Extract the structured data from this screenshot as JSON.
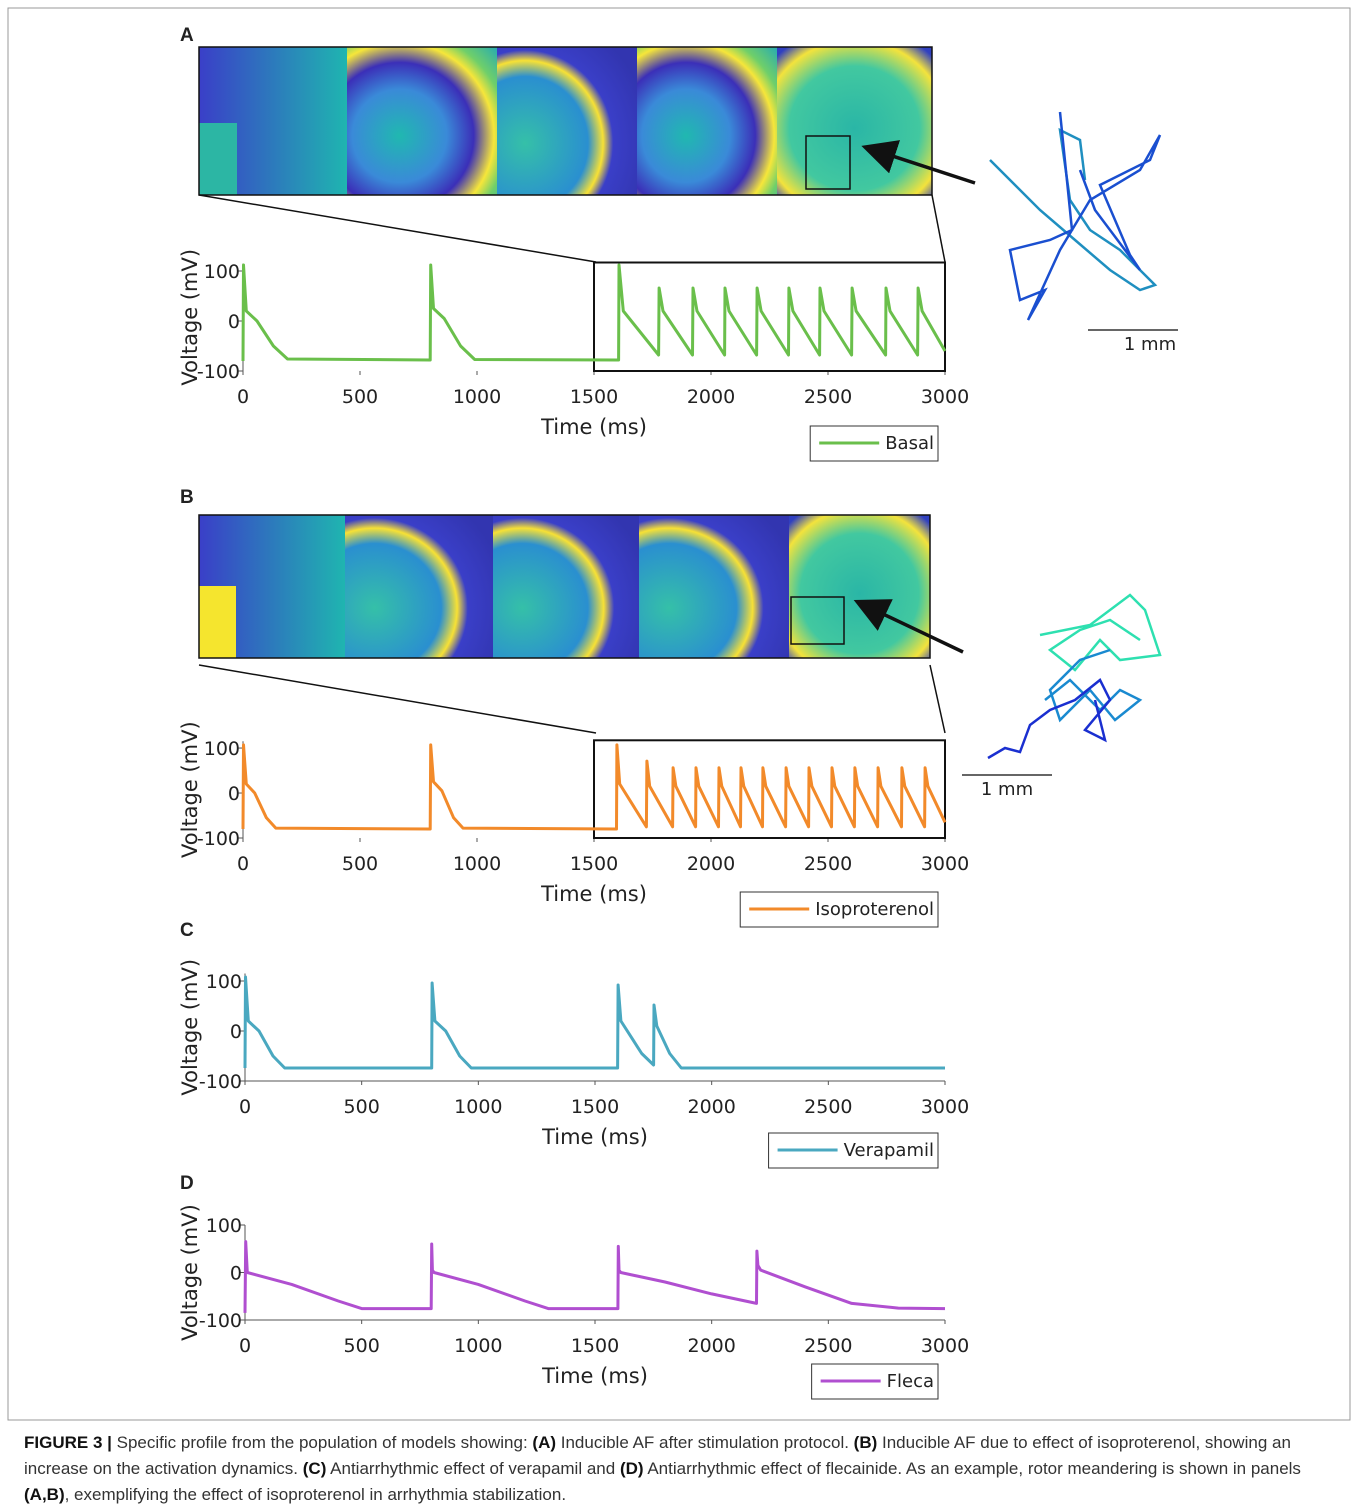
{
  "panel_labels": [
    "A",
    "B",
    "C",
    "D"
  ],
  "scale_bars": [
    "1 mm",
    "1 mm"
  ],
  "caption": [
    {
      "text": "FIGURE 3 |",
      "bold": true
    },
    {
      "text": " Specific profile from the population of models showing: ",
      "bold": false
    },
    {
      "text": "(A)",
      "bold": true
    },
    {
      "text": " Inducible AF after stimulation protocol. ",
      "bold": false
    },
    {
      "text": "(B)",
      "bold": true
    },
    {
      "text": " Inducible AF due to effect of isoproterenol, showing an increase on the activation dynamics. ",
      "bold": false
    },
    {
      "text": "(C)",
      "bold": true
    },
    {
      "text": " Antiarrhythmic effect of verapamil and ",
      "bold": false
    },
    {
      "text": "(D)",
      "bold": true
    },
    {
      "text": " Antiarrhythmic effect of flecainide. As an example, rotor meandering is shown in panels ",
      "bold": false
    },
    {
      "text": "(A,B)",
      "bold": true
    },
    {
      "text": ", exemplifying the effect of isoproterenol in arrhythmia stabilization.",
      "bold": false
    }
  ],
  "chart_data": [
    {
      "type": "line",
      "xlabel": "Time (ms)",
      "ylabel": "Voltage (mV)",
      "xlim": [
        0,
        3000
      ],
      "ylim": [
        -100,
        115
      ],
      "xticks": [
        0,
        500,
        1000,
        1500,
        2000,
        2500,
        3000
      ],
      "yticks": [
        -100,
        0,
        100
      ],
      "highlight": [
        1500,
        3000
      ],
      "x": [
        0,
        2,
        14,
        60,
        130,
        190,
        800,
        802,
        814,
        860,
        930,
        990,
        1605,
        1607,
        1625,
        1776,
        1778,
        1795,
        1921,
        1923,
        1940,
        2058,
        2060,
        2077,
        2195,
        2197,
        2214,
        2331,
        2333,
        2350,
        2464,
        2466,
        2483,
        2601,
        2603,
        2620,
        2746,
        2748,
        2765,
        2883,
        2885,
        2902,
        3000
      ],
      "series": [
        {
          "name": "Basal",
          "color": "#6abf4b",
          "values": [
            -80,
            112,
            20,
            0,
            -50,
            -76,
            -78,
            112,
            25,
            5,
            -50,
            -77,
            -78,
            112,
            20,
            -68,
            66,
            20,
            -68,
            66,
            20,
            -68,
            66,
            20,
            -68,
            66,
            20,
            -68,
            66,
            20,
            -68,
            66,
            20,
            -68,
            66,
            20,
            -68,
            66,
            20,
            -68,
            66,
            20,
            -60
          ]
        }
      ]
    },
    {
      "type": "line",
      "xlabel": "Time (ms)",
      "ylabel": "Voltage (mV)",
      "xlim": [
        0,
        3000
      ],
      "ylim": [
        -100,
        115
      ],
      "xticks": [
        0,
        500,
        1000,
        1500,
        2000,
        2500,
        3000
      ],
      "yticks": [
        -100,
        0,
        100
      ],
      "highlight": [
        1500,
        3000
      ],
      "x": [
        0,
        2,
        14,
        50,
        100,
        140,
        800,
        802,
        814,
        850,
        900,
        940,
        1596,
        1598,
        1610,
        1724,
        1726,
        1738,
        1836,
        1838,
        1850,
        1934,
        1936,
        1948,
        2032,
        2034,
        2046,
        2126,
        2128,
        2140,
        2220,
        2222,
        2234,
        2319,
        2321,
        2333,
        2417,
        2419,
        2431,
        2515,
        2517,
        2529,
        2613,
        2615,
        2627,
        2712,
        2714,
        2726,
        2814,
        2816,
        2828,
        2913,
        2915,
        2927,
        3000
      ],
      "series": [
        {
          "name": "Isoproterenol",
          "color": "#f28a2a",
          "values": [
            -80,
            107,
            20,
            0,
            -55,
            -78,
            -80,
            107,
            25,
            5,
            -55,
            -78,
            -80,
            107,
            20,
            -75,
            71,
            15,
            -75,
            56,
            15,
            -75,
            56,
            15,
            -75,
            56,
            15,
            -75,
            56,
            15,
            -75,
            56,
            15,
            -75,
            56,
            15,
            -75,
            56,
            15,
            -75,
            56,
            15,
            -75,
            56,
            15,
            -75,
            56,
            15,
            -75,
            56,
            15,
            -75,
            56,
            15,
            -65
          ]
        }
      ]
    },
    {
      "type": "line",
      "xlabel": "Time (ms)",
      "ylabel": "Voltage (mV)",
      "xlim": [
        0,
        3000
      ],
      "ylim": [
        -100,
        115
      ],
      "xticks": [
        0,
        500,
        1000,
        1500,
        2000,
        2500,
        3000
      ],
      "yticks": [
        -100,
        0,
        100
      ],
      "x": [
        0,
        2,
        14,
        60,
        120,
        170,
        800,
        802,
        814,
        860,
        920,
        970,
        1597,
        1599,
        1611,
        1700,
        1751,
        1753,
        1765,
        1820,
        1870,
        3000
      ],
      "series": [
        {
          "name": "Verapamil",
          "color": "#4aa8c0",
          "values": [
            -74,
            108,
            20,
            0,
            -50,
            -74,
            -74,
            96,
            20,
            0,
            -50,
            -74,
            -74,
            92,
            20,
            -45,
            -68,
            52,
            10,
            -45,
            -74,
            -74
          ]
        }
      ]
    },
    {
      "type": "line",
      "xlabel": "Time (ms)",
      "ylabel": "Voltage (mV)",
      "xlim": [
        0,
        3000
      ],
      "ylim": [
        -100,
        100
      ],
      "xticks": [
        0,
        500,
        1000,
        1500,
        2000,
        2500,
        3000
      ],
      "yticks": [
        -100,
        0,
        100
      ],
      "x": [
        0,
        3,
        10,
        200,
        400,
        500,
        798,
        800,
        803,
        810,
        1000,
        1200,
        1300,
        1598,
        1600,
        1603,
        1610,
        1800,
        2000,
        2192,
        2194,
        2198,
        2210,
        2400,
        2600,
        2800,
        3000
      ],
      "series": [
        {
          "name": "Fleca",
          "color": "#b04fd0",
          "values": [
            -85,
            65,
            0,
            -25,
            -60,
            -76,
            -76,
            60,
            5,
            0,
            -25,
            -60,
            -76,
            -76,
            55,
            5,
            0,
            -20,
            -45,
            -65,
            45,
            15,
            5,
            -30,
            -65,
            -75,
            -76
          ]
        }
      ]
    }
  ]
}
